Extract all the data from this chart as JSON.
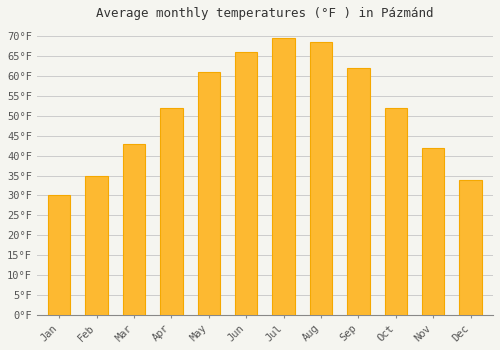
{
  "title": "Average monthly temperatures (°F ) in Pázmánd",
  "months": [
    "Jan",
    "Feb",
    "Mar",
    "Apr",
    "May",
    "Jun",
    "Jul",
    "Aug",
    "Sep",
    "Oct",
    "Nov",
    "Dec"
  ],
  "values": [
    30,
    35,
    43,
    52,
    61,
    66,
    69.5,
    68.5,
    62,
    52,
    42,
    34
  ],
  "bar_color": "#FDB931",
  "bar_edge_color": "#F5A800",
  "background_color": "#F5F5F0",
  "plot_bg_color": "#F5F5F0",
  "grid_color": "#CCCCCC",
  "ytick_step": 5,
  "ymin": 0,
  "ymax": 72,
  "title_fontsize": 9,
  "tick_fontsize": 7.5,
  "bar_width": 0.6
}
